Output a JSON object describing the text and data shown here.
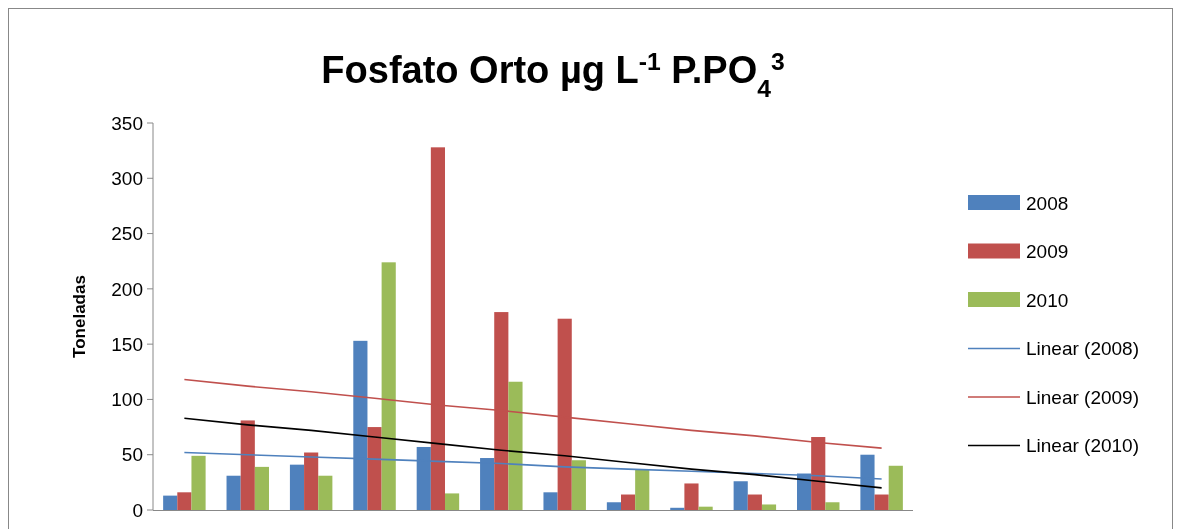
{
  "chart_data": {
    "type": "bar",
    "title": "Fosfato Orto µg L$^{-1}$ P.PO$_{4}$$^{3}$",
    "ylabel": "Toneladas",
    "categories": [
      null,
      null,
      null,
      null,
      null,
      null,
      null,
      null,
      null,
      null,
      null,
      null
    ],
    "series": [
      {
        "name": "2008",
        "color": "#4f81bd",
        "values": [
          13,
          31,
          41,
          153,
          57,
          47,
          16,
          7,
          2,
          26,
          33,
          50
        ]
      },
      {
        "name": "2009",
        "color": "#c0504d",
        "values": [
          16,
          81,
          52,
          75,
          328,
          179,
          173,
          14,
          24,
          14,
          66,
          14
        ]
      },
      {
        "name": "2010",
        "color": "#9bbb59",
        "values": [
          49,
          39,
          31,
          224,
          15,
          116,
          45,
          37,
          3,
          5,
          7,
          40
        ]
      },
      {
        "name": "Linear (2008)",
        "type": "line",
        "color": "#4f81bd",
        "values": [
          52,
          50,
          48,
          46,
          44,
          42,
          39,
          37,
          35,
          33,
          31,
          28
        ]
      },
      {
        "name": "Linear (2009)",
        "type": "line",
        "color": "#c0504d",
        "values": [
          118,
          112,
          107,
          101,
          95,
          90,
          84,
          78,
          72,
          67,
          61,
          56
        ]
      },
      {
        "name": "Linear (2010)",
        "type": "line",
        "color": "#000000",
        "values": [
          83,
          77,
          72,
          66,
          60,
          54,
          49,
          43,
          37,
          32,
          26,
          20
        ]
      }
    ],
    "ylim": [
      0,
      350
    ],
    "yticks": [
      0,
      50,
      100,
      150,
      200,
      250,
      300,
      350
    ],
    "legend": "right"
  }
}
